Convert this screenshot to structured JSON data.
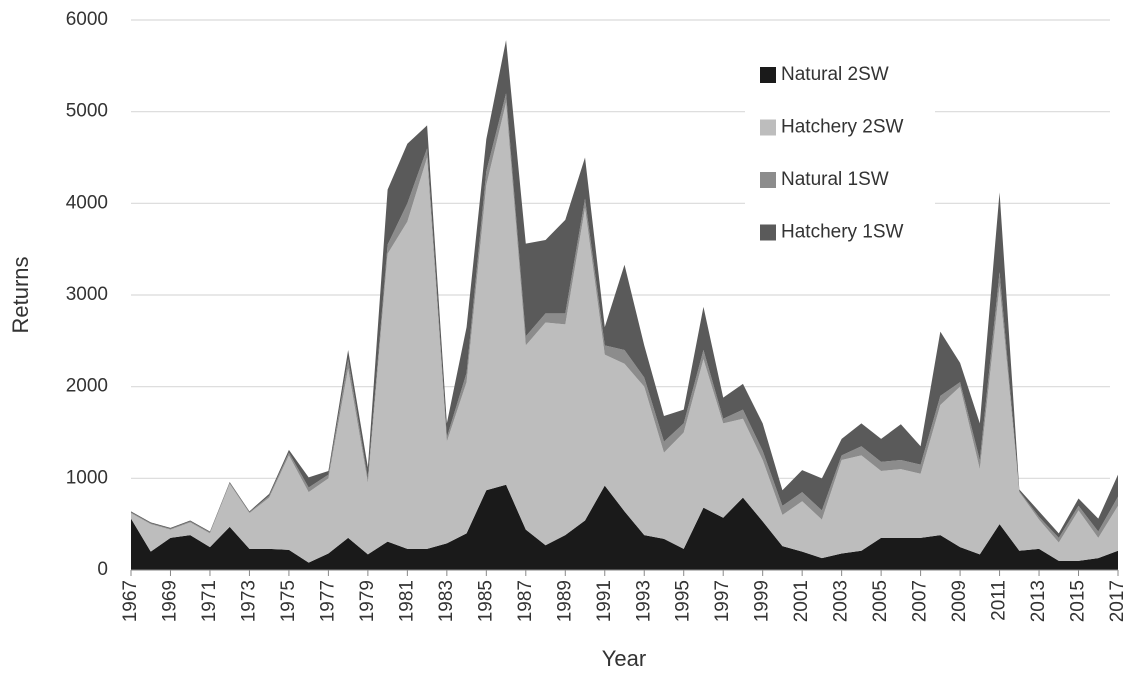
{
  "chart_data": {
    "type": "stacked-area",
    "x_label": "Year",
    "y_label": "Returns",
    "x": [
      1967,
      1968,
      1969,
      1970,
      1971,
      1972,
      1973,
      1974,
      1975,
      1976,
      1977,
      1978,
      1979,
      1980,
      1981,
      1982,
      1983,
      1984,
      1985,
      1986,
      1987,
      1988,
      1989,
      1990,
      1991,
      1992,
      1993,
      1994,
      1995,
      1996,
      1997,
      1998,
      1999,
      2000,
      2001,
      2002,
      2003,
      2004,
      2005,
      2006,
      2007,
      2008,
      2009,
      2010,
      2011,
      2012,
      2013,
      2014,
      2015,
      2016,
      2017
    ],
    "xlim": [
      1967,
      2017
    ],
    "xticks": [
      1967,
      1969,
      1971,
      1973,
      1975,
      1977,
      1979,
      1981,
      1983,
      1985,
      1987,
      1989,
      1991,
      1993,
      1995,
      1997,
      1999,
      2001,
      2003,
      2005,
      2007,
      2009,
      2011,
      2013,
      2015,
      2017
    ],
    "ylim": [
      0,
      6000
    ],
    "yticks": [
      0,
      1000,
      2000,
      3000,
      4000,
      5000,
      6000
    ],
    "grid": true,
    "legend": "upper right",
    "series": [
      {
        "name": "Natural 2SW",
        "color": "#1a1a1a",
        "values": [
          560,
          200,
          350,
          380,
          250,
          470,
          230,
          230,
          220,
          80,
          180,
          350,
          170,
          310,
          230,
          230,
          290,
          400,
          870,
          930,
          440,
          270,
          380,
          540,
          920,
          640,
          380,
          340,
          230,
          680,
          570,
          790,
          530,
          260,
          200,
          130,
          180,
          210,
          350,
          350,
          350,
          380,
          250,
          170,
          500,
          210,
          230,
          100,
          100,
          130,
          210
        ]
      },
      {
        "name": "Hatchery 2SW",
        "color": "#bdbdbd",
        "values": [
          60,
          300,
          90,
          140,
          150,
          470,
          390,
          560,
          1030,
          770,
          820,
          1850,
          780,
          3140,
          3570,
          4270,
          1110,
          1650,
          3330,
          4170,
          2010,
          2430,
          2300,
          3410,
          1430,
          1610,
          1620,
          940,
          1270,
          1620,
          1030,
          860,
          670,
          340,
          550,
          420,
          1020,
          1040,
          730,
          750,
          700,
          1420,
          1750,
          930,
          2600,
          640,
          320,
          200,
          550,
          220,
          490
        ]
      },
      {
        "name": "Natural 1SW",
        "color": "#8c8c8c",
        "values": [
          10,
          10,
          10,
          10,
          10,
          10,
          10,
          20,
          30,
          50,
          40,
          100,
          50,
          100,
          200,
          100,
          50,
          100,
          150,
          100,
          100,
          100,
          120,
          100,
          100,
          150,
          100,
          120,
          100,
          100,
          50,
          100,
          100,
          100,
          100,
          100,
          50,
          100,
          100,
          100,
          100,
          100,
          50,
          100,
          150,
          10,
          30,
          50,
          50,
          70,
          100
        ]
      },
      {
        "name": "Hatchery 1SW",
        "color": "#5a5a5a",
        "values": [
          10,
          10,
          10,
          10,
          10,
          10,
          10,
          20,
          30,
          110,
          40,
          100,
          120,
          600,
          650,
          250,
          150,
          500,
          350,
          580,
          1010,
          800,
          1020,
          450,
          200,
          930,
          350,
          280,
          150,
          470,
          230,
          280,
          300,
          170,
          240,
          350,
          180,
          250,
          250,
          390,
          200,
          700,
          210,
          400,
          870,
          20,
          60,
          50,
          80,
          140,
          240
        ]
      }
    ]
  }
}
